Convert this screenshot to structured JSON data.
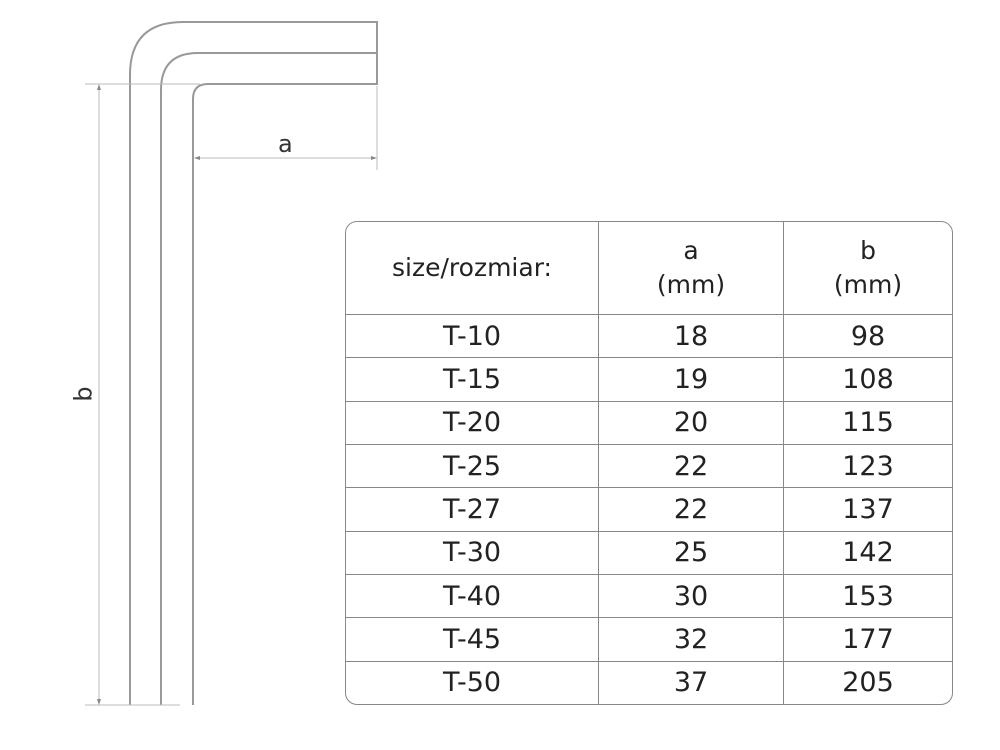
{
  "diagram": {
    "dim_a_label": "a",
    "dim_b_label": "b"
  },
  "table": {
    "headers": [
      "size/rozmiar:",
      "a\n(mm)",
      "b\n(mm)"
    ],
    "header_lines": [
      [
        "size/rozmiar:"
      ],
      [
        "a",
        "(mm)"
      ],
      [
        "b",
        "(mm)"
      ]
    ],
    "rows": [
      [
        "T-10",
        "18",
        "98"
      ],
      [
        "T-15",
        "19",
        "108"
      ],
      [
        "T-20",
        "20",
        "115"
      ],
      [
        "T-25",
        "22",
        "123"
      ],
      [
        "T-27",
        "22",
        "137"
      ],
      [
        "T-30",
        "25",
        "142"
      ],
      [
        "T-40",
        "30",
        "153"
      ],
      [
        "T-45",
        "32",
        "177"
      ],
      [
        "T-50",
        "37",
        "205"
      ]
    ]
  }
}
